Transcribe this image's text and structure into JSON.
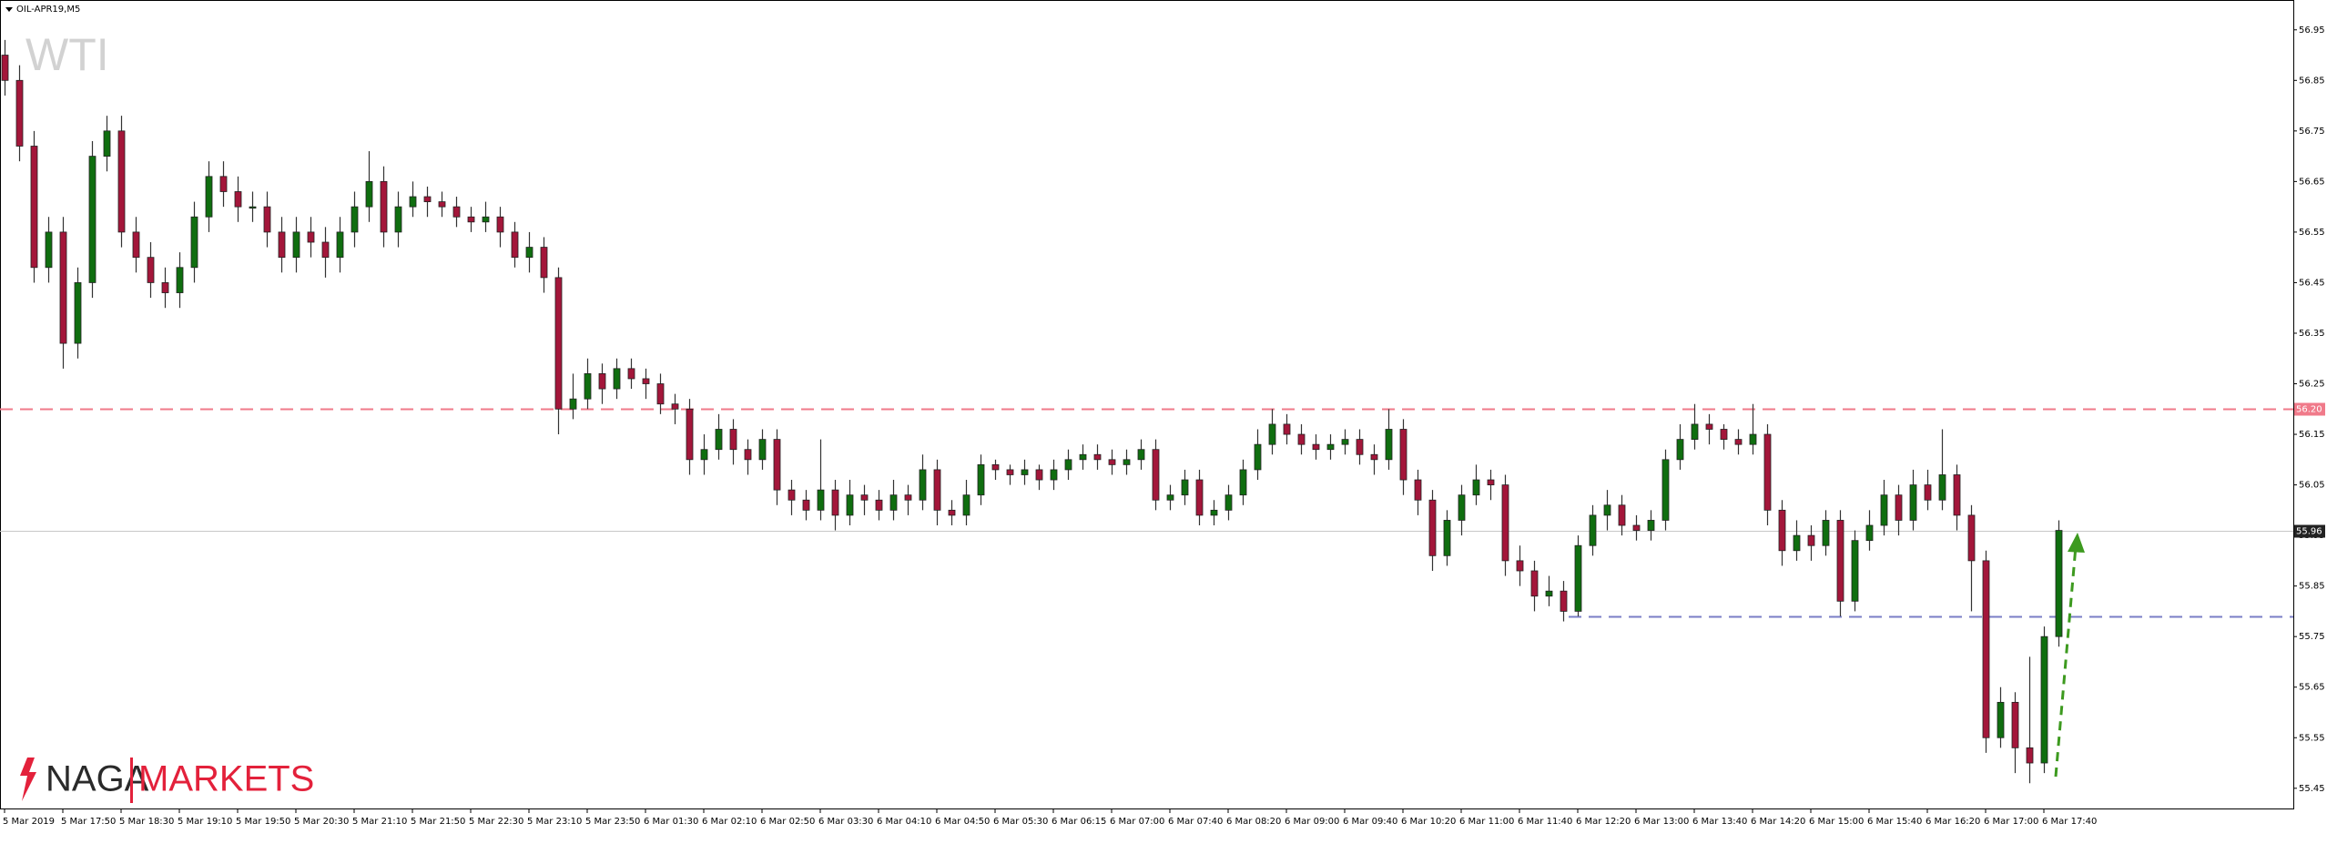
{
  "chart_data": {
    "type": "candlestick",
    "title": "OIL-APR19,M5",
    "watermark": "WTI",
    "categories": [
      "5 Mar 2019",
      null,
      null,
      null,
      "5 Mar 17:50",
      null,
      null,
      null,
      "5 Mar 18:30",
      null,
      null,
      null,
      "5 Mar 19:10",
      null,
      null,
      null,
      "5 Mar 19:50",
      null,
      null,
      null,
      "5 Mar 20:30",
      null,
      null,
      null,
      "5 Mar 21:10",
      null,
      null,
      null,
      "5 Mar 21:50",
      null,
      null,
      null,
      "5 Mar 22:30",
      null,
      null,
      null,
      "5 Mar 23:10",
      null,
      null,
      null,
      "5 Mar 23:50",
      null,
      null,
      null,
      "6 Mar 01:30",
      null,
      null,
      null,
      "6 Mar 02:10",
      null,
      null,
      null,
      "6 Mar 02:50",
      null,
      null,
      null,
      "6 Mar 03:30",
      null,
      null,
      null,
      "6 Mar 04:10",
      null,
      null,
      null,
      "6 Mar 04:50",
      null,
      null,
      null,
      "6 Mar 05:30",
      null,
      null,
      null,
      "6 Mar 06:15",
      null,
      null,
      null,
      "6 Mar 07:00",
      null,
      null,
      null,
      "6 Mar 07:40",
      null,
      null,
      null,
      "6 Mar 08:20",
      null,
      null,
      null,
      "6 Mar 09:00",
      null,
      null,
      null,
      "6 Mar 09:40",
      null,
      null,
      null,
      "6 Mar 10:20",
      null,
      null,
      null,
      "6 Mar 11:00",
      null,
      null,
      null,
      "6 Mar 11:40",
      null,
      null,
      null,
      "6 Mar 12:20",
      null,
      null,
      null,
      "6 Mar 13:00",
      null,
      null,
      null,
      "6 Mar 13:40",
      null,
      null,
      null,
      "6 Mar 14:20",
      null,
      null,
      null,
      "6 Mar 15:00",
      null,
      null,
      null,
      "6 Mar 15:40",
      null,
      null,
      null,
      "6 Mar 16:20",
      null,
      null,
      null,
      "6 Mar 17:00",
      null,
      null,
      null,
      "6 Mar 17:40",
      null
    ],
    "open": [
      56.9,
      56.85,
      56.72,
      56.48,
      56.55,
      56.33,
      56.45,
      56.7,
      56.75,
      56.55,
      56.5,
      56.45,
      56.43,
      56.48,
      56.58,
      56.66,
      56.63,
      56.6,
      56.6,
      56.55,
      56.5,
      56.55,
      56.53,
      56.5,
      56.55,
      56.6,
      56.65,
      56.55,
      56.6,
      56.62,
      56.61,
      56.6,
      56.58,
      56.57,
      56.58,
      56.55,
      56.5,
      56.52,
      56.46,
      56.2,
      56.22,
      56.27,
      56.24,
      56.28,
      56.26,
      56.25,
      56.21,
      56.2,
      56.1,
      56.12,
      56.16,
      56.12,
      56.1,
      56.14,
      56.04,
      56.02,
      56.0,
      56.04,
      55.99,
      56.03,
      56.02,
      56.0,
      56.03,
      56.02,
      56.08,
      56.0,
      55.99,
      56.03,
      56.09,
      56.08,
      56.07,
      56.08,
      56.06,
      56.08,
      56.1,
      56.11,
      56.1,
      56.09,
      56.1,
      56.12,
      56.02,
      56.03,
      56.06,
      55.99,
      56.0,
      56.03,
      56.08,
      56.13,
      56.17,
      56.15,
      56.13,
      56.12,
      56.13,
      56.14,
      56.11,
      56.1,
      56.16,
      56.06,
      56.02,
      55.91,
      55.98,
      56.03,
      56.06,
      56.05,
      55.9,
      55.88,
      55.83,
      55.84,
      55.8,
      55.93,
      55.99,
      56.01,
      55.97,
      55.96,
      55.98,
      56.1,
      56.14,
      56.17,
      56.16,
      56.14,
      56.13,
      56.15,
      56.0,
      55.92,
      55.95,
      55.93,
      55.98,
      55.82,
      55.94,
      55.97,
      56.03,
      55.98,
      56.05,
      56.02,
      56.07,
      55.99,
      55.9,
      55.55,
      55.62,
      55.53,
      55.5,
      55.75
    ],
    "high": [
      56.93,
      56.88,
      56.75,
      56.58,
      56.58,
      56.48,
      56.73,
      56.78,
      56.78,
      56.58,
      56.53,
      56.48,
      56.51,
      56.61,
      56.69,
      56.69,
      56.66,
      56.63,
      56.63,
      56.58,
      56.58,
      56.58,
      56.56,
      56.58,
      56.63,
      56.71,
      56.68,
      56.63,
      56.65,
      56.64,
      56.63,
      56.62,
      56.6,
      56.61,
      56.6,
      56.57,
      56.55,
      56.54,
      56.48,
      56.27,
      56.3,
      56.29,
      56.3,
      56.3,
      56.28,
      56.27,
      56.23,
      56.22,
      56.15,
      56.19,
      56.18,
      56.14,
      56.16,
      56.16,
      56.06,
      56.04,
      56.14,
      56.06,
      56.06,
      56.05,
      56.04,
      56.06,
      56.05,
      56.11,
      56.1,
      56.02,
      56.06,
      56.11,
      56.1,
      56.09,
      56.1,
      56.09,
      56.1,
      56.12,
      56.13,
      56.13,
      56.12,
      56.12,
      56.14,
      56.14,
      56.05,
      56.08,
      56.08,
      56.02,
      56.05,
      56.1,
      56.16,
      56.2,
      56.19,
      56.17,
      56.15,
      56.15,
      56.16,
      56.16,
      56.13,
      56.2,
      56.18,
      56.08,
      56.04,
      56.0,
      56.05,
      56.09,
      56.08,
      56.07,
      55.93,
      55.9,
      55.87,
      55.86,
      55.95,
      56.01,
      56.04,
      56.03,
      55.99,
      56.0,
      56.12,
      56.17,
      56.21,
      56.19,
      56.17,
      56.16,
      56.21,
      56.17,
      56.02,
      55.98,
      55.97,
      56.0,
      56.0,
      55.96,
      56.0,
      56.06,
      56.05,
      56.08,
      56.08,
      56.16,
      56.09,
      56.01,
      55.92,
      55.65,
      55.64,
      55.71,
      55.77,
      55.98
    ],
    "low": [
      56.82,
      56.69,
      56.45,
      56.45,
      56.28,
      56.3,
      56.42,
      56.67,
      56.52,
      56.47,
      56.42,
      56.4,
      56.4,
      56.45,
      56.55,
      56.6,
      56.57,
      56.57,
      56.52,
      56.47,
      56.47,
      56.5,
      56.46,
      56.47,
      56.52,
      56.57,
      56.52,
      56.52,
      56.58,
      56.58,
      56.58,
      56.56,
      56.55,
      56.55,
      56.52,
      56.48,
      56.47,
      56.43,
      56.15,
      56.18,
      56.2,
      56.21,
      56.22,
      56.24,
      56.22,
      56.19,
      56.17,
      56.07,
      56.07,
      56.1,
      56.09,
      56.07,
      56.08,
      56.01,
      55.99,
      55.98,
      55.98,
      55.96,
      55.97,
      55.99,
      55.98,
      55.98,
      55.99,
      56.0,
      55.97,
      55.97,
      55.97,
      56.01,
      56.06,
      56.05,
      56.05,
      56.04,
      56.04,
      56.06,
      56.08,
      56.08,
      56.07,
      56.07,
      56.08,
      56.0,
      56.0,
      56.01,
      55.97,
      55.97,
      55.98,
      56.01,
      56.06,
      56.11,
      56.13,
      56.11,
      56.1,
      56.1,
      56.11,
      56.09,
      56.07,
      56.08,
      56.03,
      55.99,
      55.88,
      55.89,
      55.95,
      56.01,
      56.02,
      55.87,
      55.85,
      55.8,
      55.81,
      55.78,
      55.79,
      55.91,
      55.96,
      55.95,
      55.94,
      55.94,
      55.96,
      56.08,
      56.12,
      56.13,
      56.12,
      56.11,
      56.11,
      55.97,
      55.89,
      55.9,
      55.9,
      55.91,
      55.79,
      55.8,
      55.92,
      55.95,
      55.95,
      55.96,
      56.0,
      56.0,
      55.96,
      55.8,
      55.52,
      55.53,
      55.48,
      55.46,
      55.48,
      55.73
    ],
    "close": [
      56.85,
      56.72,
      56.48,
      56.55,
      56.33,
      56.45,
      56.7,
      56.75,
      56.55,
      56.5,
      56.45,
      56.43,
      56.48,
      56.58,
      56.66,
      56.63,
      56.6,
      56.6,
      56.55,
      56.5,
      56.55,
      56.53,
      56.5,
      56.55,
      56.6,
      56.65,
      56.55,
      56.6,
      56.62,
      56.61,
      56.6,
      56.58,
      56.57,
      56.58,
      56.55,
      56.5,
      56.52,
      56.46,
      56.2,
      56.22,
      56.27,
      56.24,
      56.28,
      56.26,
      56.25,
      56.21,
      56.2,
      56.1,
      56.12,
      56.16,
      56.12,
      56.1,
      56.14,
      56.04,
      56.02,
      56.0,
      56.04,
      55.99,
      56.03,
      56.02,
      56.0,
      56.03,
      56.02,
      56.08,
      56.0,
      55.99,
      56.03,
      56.09,
      56.08,
      56.07,
      56.08,
      56.06,
      56.08,
      56.1,
      56.11,
      56.1,
      56.09,
      56.1,
      56.12,
      56.02,
      56.03,
      56.06,
      55.99,
      56.0,
      56.03,
      56.08,
      56.13,
      56.17,
      56.15,
      56.13,
      56.12,
      56.13,
      56.14,
      56.11,
      56.1,
      56.16,
      56.06,
      56.02,
      55.91,
      55.98,
      56.03,
      56.06,
      56.05,
      55.9,
      55.88,
      55.83,
      55.84,
      55.8,
      55.93,
      55.99,
      56.01,
      55.97,
      55.96,
      55.98,
      56.1,
      56.14,
      56.17,
      56.16,
      56.14,
      56.13,
      56.15,
      56.0,
      55.92,
      55.95,
      55.93,
      55.98,
      55.82,
      55.94,
      55.97,
      56.03,
      55.98,
      56.05,
      56.02,
      56.07,
      55.99,
      55.9,
      55.55,
      55.62,
      55.53,
      55.5,
      55.75,
      55.96
    ],
    "up_color": "#0f6e0f",
    "down_color": "#a3163a",
    "ylim": [
      55.41,
      57.0
    ],
    "yticks": [
      56.95,
      56.85,
      56.75,
      56.65,
      56.55,
      56.45,
      56.35,
      56.25,
      56.15,
      56.05,
      55.95,
      55.85,
      55.75,
      55.65,
      55.55,
      55.45
    ],
    "levels": [
      {
        "value": 56.2,
        "label": "56.20",
        "color": "#f07a8a",
        "dash": true
      },
      {
        "value": 55.79,
        "color": "#7a7ec6",
        "dash": true
      },
      {
        "value": 55.96,
        "label": "55.96",
        "color": "#c8c8c8",
        "dash": false
      }
    ]
  },
  "brand": {
    "left": "NAGA",
    "right": "MARKETS"
  }
}
